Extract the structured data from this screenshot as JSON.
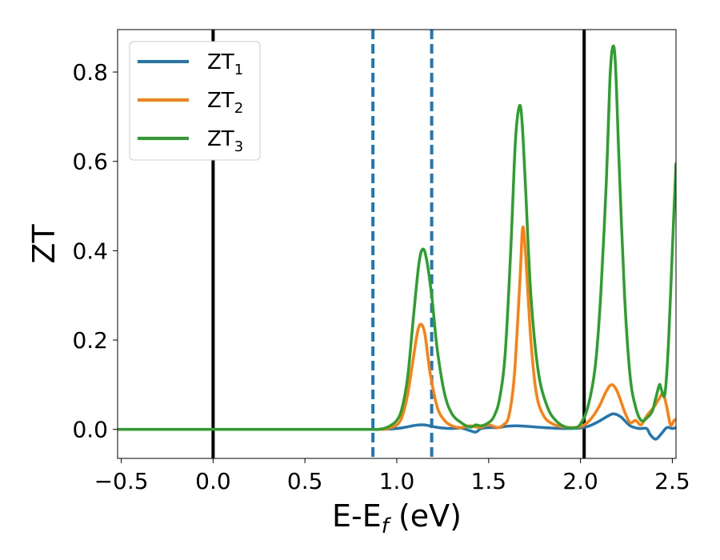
{
  "chart_data": {
    "type": "line",
    "xlabel": "E-E",
    "xlabel_sub": "f",
    "xlabel_unit": " (eV)",
    "ylabel": "ZT",
    "xlim": [
      -0.52,
      2.52
    ],
    "ylim": [
      -0.065,
      0.895
    ],
    "x_ticks": [
      -0.5,
      0.0,
      0.5,
      1.0,
      1.5,
      2.0,
      2.5
    ],
    "x_tick_labels": [
      "−0.5",
      "0.0",
      "0.5",
      "1.0",
      "1.5",
      "2.0",
      "2.5"
    ],
    "y_ticks": [
      0.0,
      0.2,
      0.4,
      0.6,
      0.8
    ],
    "y_tick_labels": [
      "0.0",
      "0.2",
      "0.4",
      "0.6",
      "0.8"
    ],
    "grid": false,
    "legend_position": "top-left",
    "vertical_lines": [
      {
        "x": 0.0,
        "style": "solid",
        "color": "#000000"
      },
      {
        "x": 0.87,
        "style": "dashed",
        "color": "#1f77b4"
      },
      {
        "x": 1.19,
        "style": "dashed",
        "color": "#1f77b4"
      },
      {
        "x": 2.02,
        "style": "solid",
        "color": "#000000"
      }
    ],
    "series": [
      {
        "name": "ZT",
        "sub": "1",
        "color": "#1f77b4",
        "x": [
          -0.52,
          0.0,
          0.5,
          0.9,
          1.0,
          1.05,
          1.1,
          1.15,
          1.2,
          1.25,
          1.3,
          1.35,
          1.4,
          1.43,
          1.46,
          1.5,
          1.55,
          1.6,
          1.65,
          1.7,
          1.8,
          1.9,
          2.0,
          2.05,
          2.1,
          2.15,
          2.18,
          2.22,
          2.27,
          2.32,
          2.36,
          2.38,
          2.41,
          2.44,
          2.47,
          2.5,
          2.52
        ],
        "y": [
          0.0,
          0.0,
          0.0,
          0.0,
          0.002,
          0.005,
          0.009,
          0.01,
          0.006,
          0.003,
          0.002,
          0.003,
          -0.003,
          -0.006,
          0.002,
          0.004,
          0.004,
          0.007,
          0.008,
          0.007,
          0.004,
          0.002,
          0.003,
          0.008,
          0.018,
          0.03,
          0.035,
          0.028,
          0.008,
          0.002,
          0.002,
          -0.012,
          -0.022,
          -0.01,
          0.004,
          0.002,
          0.004
        ]
      },
      {
        "name": "ZT",
        "sub": "2",
        "color": "#ff7f0e",
        "x": [
          -0.52,
          0.0,
          0.5,
          0.9,
          0.95,
          1.0,
          1.03,
          1.06,
          1.09,
          1.12,
          1.15,
          1.18,
          1.22,
          1.26,
          1.3,
          1.35,
          1.4,
          1.45,
          1.5,
          1.55,
          1.58,
          1.61,
          1.64,
          1.67,
          1.685,
          1.7,
          1.73,
          1.76,
          1.8,
          1.85,
          1.9,
          1.95,
          2.0,
          2.05,
          2.1,
          2.14,
          2.17,
          2.2,
          2.24,
          2.27,
          2.3,
          2.33,
          2.36,
          2.4,
          2.43,
          2.45,
          2.47,
          2.49,
          2.51,
          2.52
        ],
        "y": [
          0.0,
          0.0,
          0.0,
          0.0,
          0.002,
          0.01,
          0.03,
          0.08,
          0.16,
          0.23,
          0.22,
          0.13,
          0.05,
          0.02,
          0.008,
          0.004,
          0.008,
          0.004,
          0.01,
          0.004,
          0.01,
          0.03,
          0.12,
          0.33,
          0.45,
          0.4,
          0.2,
          0.08,
          0.03,
          0.012,
          0.006,
          0.004,
          0.006,
          0.02,
          0.05,
          0.085,
          0.1,
          0.085,
          0.04,
          0.015,
          0.02,
          0.01,
          0.03,
          0.05,
          0.07,
          0.08,
          0.05,
          0.01,
          0.02,
          0.022
        ]
      },
      {
        "name": "ZT",
        "sub": "3",
        "color": "#2ca02c",
        "x": [
          -0.52,
          0.0,
          0.5,
          0.85,
          0.9,
          0.95,
          1.0,
          1.03,
          1.06,
          1.09,
          1.12,
          1.14,
          1.16,
          1.19,
          1.22,
          1.26,
          1.3,
          1.35,
          1.4,
          1.43,
          1.46,
          1.5,
          1.53,
          1.56,
          1.59,
          1.62,
          1.645,
          1.665,
          1.68,
          1.7,
          1.73,
          1.77,
          1.82,
          1.87,
          1.92,
          1.97,
          2.0,
          2.04,
          2.08,
          2.11,
          2.14,
          2.16,
          2.175,
          2.19,
          2.21,
          2.24,
          2.27,
          2.3,
          2.33,
          2.36,
          2.39,
          2.41,
          2.43,
          2.44,
          2.46,
          2.48,
          2.5,
          2.52
        ],
        "y": [
          0.0,
          0.0,
          0.0,
          0.0,
          0.0,
          0.005,
          0.02,
          0.05,
          0.12,
          0.25,
          0.37,
          0.403,
          0.385,
          0.3,
          0.18,
          0.08,
          0.035,
          0.015,
          0.005,
          0.01,
          0.008,
          0.015,
          0.03,
          0.07,
          0.17,
          0.4,
          0.64,
          0.72,
          0.7,
          0.55,
          0.3,
          0.13,
          0.05,
          0.018,
          0.005,
          0.004,
          0.012,
          0.05,
          0.14,
          0.3,
          0.55,
          0.78,
          0.855,
          0.82,
          0.6,
          0.3,
          0.12,
          0.05,
          0.02,
          0.025,
          0.04,
          0.07,
          0.1,
          0.09,
          0.08,
          0.2,
          0.4,
          0.595
        ]
      }
    ]
  }
}
